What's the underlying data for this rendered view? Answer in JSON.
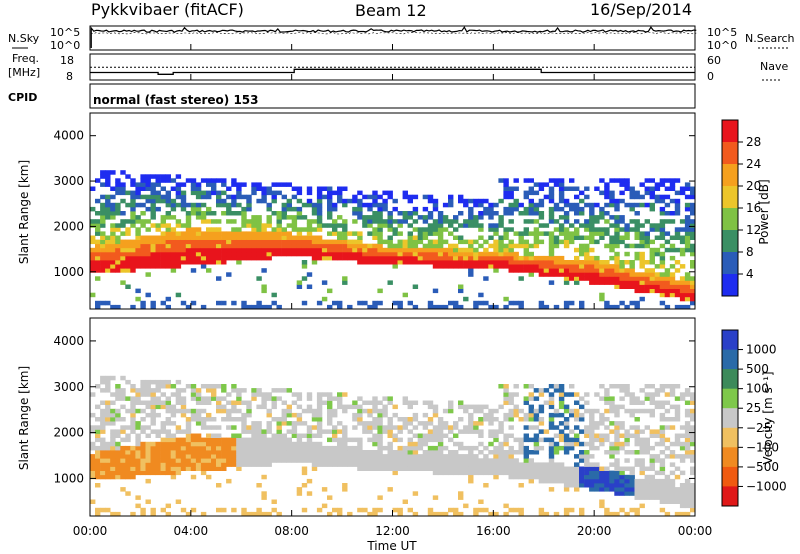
{
  "header": {
    "station": "Pykkvibaer (fitACF)",
    "beam": "Beam 12",
    "date": "16/Sep/2014"
  },
  "noise_panel": {
    "left_label": "N.Sky",
    "right_label": "N.Search",
    "left_ticks": [
      "10^5",
      "10^0"
    ],
    "right_ticks": [
      "10^5",
      "10^0"
    ]
  },
  "freq_panel": {
    "left_label_line1": "Freq.",
    "left_label_line2": "[MHz]",
    "right_label": "Nave",
    "left_ticks": [
      "18",
      "8"
    ],
    "right_ticks": [
      "60",
      "0"
    ]
  },
  "cpid_panel": {
    "label": "CPID",
    "text": "normal (fast stereo) 153"
  },
  "power_panel": {
    "ylabel": "Slant Range [km]",
    "yticks": [
      "4000",
      "3000",
      "2000",
      "1000"
    ],
    "colorbar_label": "Power [dB]",
    "colorbar_ticks": [
      "28",
      "24",
      "20",
      "16",
      "12",
      "8",
      "4"
    ],
    "colors": [
      "#e8141c",
      "#f25a1e",
      "#f5a01e",
      "#ecc52a",
      "#7fc244",
      "#3a8f64",
      "#2a5cb8",
      "#1e2cf0"
    ]
  },
  "velocity_panel": {
    "ylabel": "Slant Range [km]",
    "yticks": [
      "4000",
      "3000",
      "2000",
      "1000"
    ],
    "colorbar_label": "Velocity [m s⁻¹]",
    "colorbar_ticks": [
      "1000",
      "500",
      "100",
      "25",
      "−25",
      "−100",
      "−500",
      "−1000"
    ],
    "colors": [
      "#2a40c8",
      "#2a6aa8",
      "#3c8a5a",
      "#7ec84a",
      "#c8c8c8",
      "#f0c060",
      "#f08a20",
      "#f05a10",
      "#e01818"
    ]
  },
  "x_axis": {
    "label": "Time UT",
    "ticks": [
      "00:00",
      "04:00",
      "08:00",
      "12:00",
      "16:00",
      "20:00",
      "00:00"
    ]
  },
  "chart_data": [
    {
      "type": "heatmap",
      "title": "Power",
      "xlabel": "Time UT",
      "ylabel": "Slant Range [km]",
      "x_range_hours": [
        0,
        24
      ],
      "ylim_km": [
        180,
        4500
      ],
      "colorbar": "Power [dB]",
      "colorbar_range": [
        0,
        32
      ],
      "main_band_range_km": [
        {
          "hour": 0,
          "range": [
            900,
            1500
          ]
        },
        {
          "hour": 4,
          "range": [
            1100,
            1900
          ]
        },
        {
          "hour": 8,
          "range": [
            1300,
            1800
          ]
        },
        {
          "hour": 12,
          "range": [
            1100,
            1500
          ]
        },
        {
          "hour": 16,
          "range": [
            1050,
            1400
          ]
        },
        {
          "hour": 20,
          "range": [
            700,
            1200
          ]
        },
        {
          "hour": 24,
          "range": [
            300,
            700
          ]
        }
      ]
    },
    {
      "type": "heatmap",
      "title": "Velocity",
      "xlabel": "Time UT",
      "ylabel": "Slant Range [km]",
      "x_range_hours": [
        0,
        24
      ],
      "ylim_km": [
        180,
        4500
      ],
      "colorbar": "Velocity [m s-1]",
      "colorbar_range": [
        -1000,
        1000
      ]
    }
  ]
}
